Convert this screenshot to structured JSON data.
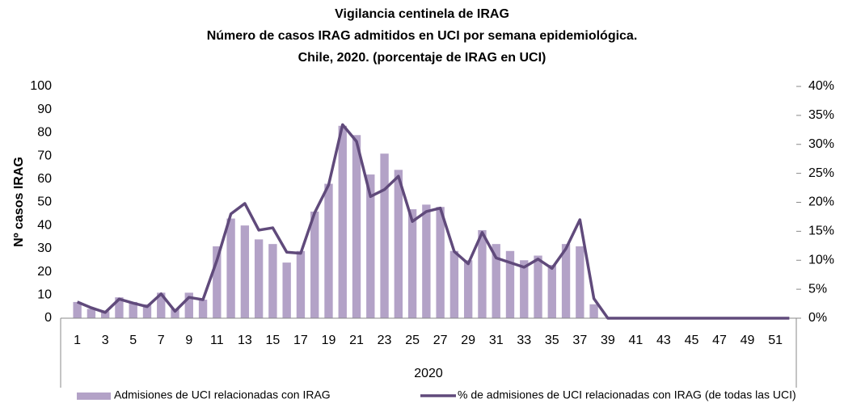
{
  "chart_data": {
    "type": "bar+line",
    "title": "Vigilancia centinela de IRAG",
    "subtitle": [
      "Número de casos IRAG admitidos en UCI por semana epidemiológica.",
      "Chile, 2020.  (porcentaje de IRAG en UCI)"
    ],
    "x_label": "2020",
    "y_label": "Nº casos IRAG",
    "categories": [
      1,
      null,
      3,
      null,
      5,
      null,
      7,
      null,
      9,
      null,
      11,
      null,
      13,
      null,
      15,
      null,
      17,
      null,
      19,
      null,
      21,
      null,
      23,
      null,
      25,
      null,
      27,
      null,
      29,
      null,
      31,
      null,
      33,
      null,
      35,
      null,
      37,
      null,
      39,
      null,
      41,
      null,
      43,
      null,
      45,
      null,
      47,
      null,
      49,
      null,
      51,
      null
    ],
    "series": [
      {
        "name": "Admisiones de UCI relacionadas con IRAG",
        "type": "bar",
        "color": "#b3a2c7",
        "values": [
          7,
          4,
          3,
          9,
          7,
          6,
          11,
          4,
          11,
          8,
          31,
          43,
          40,
          34,
          32,
          24,
          29,
          46,
          58,
          83,
          79,
          62,
          71,
          64,
          47,
          49,
          48,
          29,
          25,
          38,
          32,
          29,
          25,
          27,
          23,
          32,
          31,
          6,
          0,
          0,
          0,
          0,
          0,
          0,
          0,
          0,
          0,
          0,
          0,
          0,
          0,
          0
        ]
      },
      {
        "name": "% de admisiones de UCI relacionadas con IRAG (de todas las UCI)",
        "type": "line",
        "axis": "y2",
        "color": "#604a7b",
        "values": [
          2.8,
          1.8,
          1.0,
          3.3,
          2.6,
          2.0,
          4.2,
          1.2,
          3.6,
          3.2,
          10,
          18,
          19.8,
          15.2,
          15.6,
          11.4,
          11.2,
          18.2,
          23,
          33.4,
          30.5,
          21,
          22.2,
          24.5,
          16.7,
          18.4,
          19,
          11.5,
          9.4,
          14.8,
          10.4,
          9.6,
          8.8,
          10.2,
          8.6,
          12,
          17,
          3.4,
          0,
          0,
          0,
          0,
          0,
          0,
          0,
          0,
          0,
          0,
          0,
          0,
          0,
          0
        ]
      }
    ],
    "ylim": [
      0,
      100
    ],
    "yticks": [
      0,
      10,
      20,
      30,
      40,
      50,
      60,
      70,
      80,
      90,
      100
    ],
    "y2lim": [
      0,
      40
    ],
    "y2ticks": [
      {
        "value": 0,
        "label": "0%"
      },
      {
        "value": 5,
        "label": "5%"
      },
      {
        "value": 10,
        "label": "10%"
      },
      {
        "value": 15,
        "label": "15%"
      },
      {
        "value": 20,
        "label": "20%"
      },
      {
        "value": 25,
        "label": "25%"
      },
      {
        "value": 30,
        "label": "30%"
      },
      {
        "value": 35,
        "label": "35%"
      },
      {
        "value": 40,
        "label": "40%"
      }
    ],
    "grid": false
  }
}
